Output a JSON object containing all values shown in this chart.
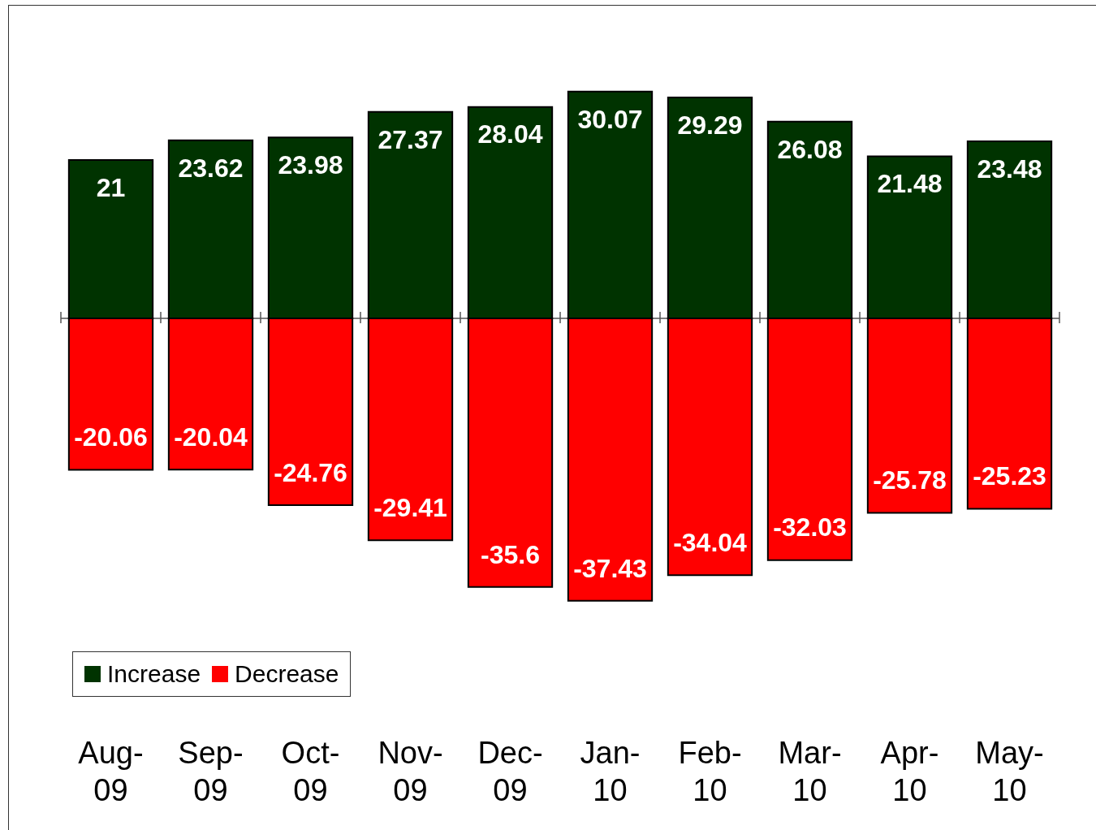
{
  "chart_data": {
    "type": "bar",
    "stacked": true,
    "categories": [
      "Aug-09",
      "Sep-09",
      "Oct-09",
      "Nov-09",
      "Dec-09",
      "Jan-10",
      "Feb-10",
      "Mar-10",
      "Apr-10",
      "May-10"
    ],
    "series": [
      {
        "name": "Increase",
        "color": "#003300",
        "values": [
          21,
          23.62,
          23.98,
          27.37,
          28.04,
          30.07,
          29.29,
          26.08,
          21.48,
          23.48
        ]
      },
      {
        "name": "Decrease",
        "color": "#ff0000",
        "values": [
          -20.06,
          -20.04,
          -24.76,
          -29.41,
          -35.6,
          -37.43,
          -34.04,
          -32.03,
          -25.78,
          -25.23
        ]
      }
    ],
    "data_labels": true,
    "legend": "bottom left",
    "grid": false
  }
}
